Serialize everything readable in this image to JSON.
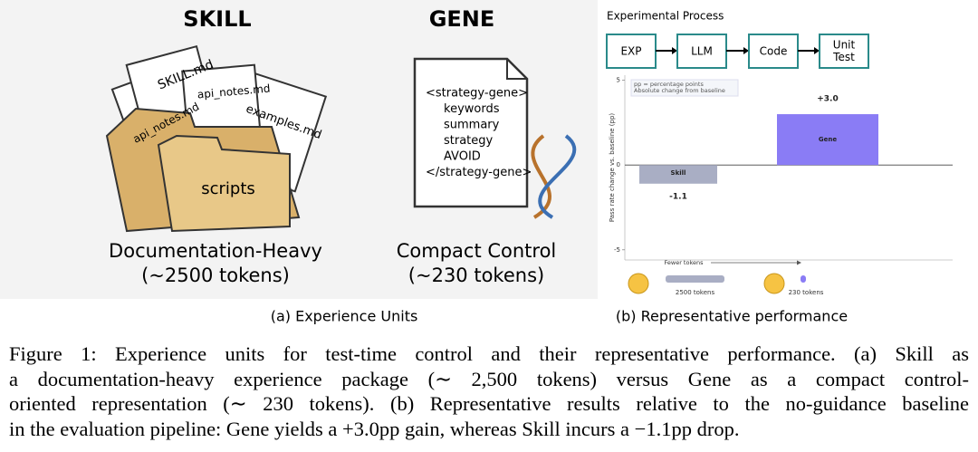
{
  "panel_a": {
    "skill_title": "SKILL",
    "gene_title": "GENE",
    "files": [
      "SKILL.md",
      "api_notes.md",
      "api_notes.md",
      "examples.md",
      "scripts"
    ],
    "gene_lines": [
      "<strategy-gene>",
      "keywords",
      "summary",
      "strategy",
      "AVOID",
      "</strategy-gene>"
    ],
    "skill_label": "Documentation-Heavy",
    "skill_tokens": "(~2500 tokens)",
    "gene_label": "Compact Control",
    "gene_tokens": "(~230 tokens)",
    "caption": "(a) Experience Units"
  },
  "panel_b": {
    "process_title": "Experimental Process",
    "steps": [
      "EXP",
      "LLM",
      "Code",
      "Unit Test"
    ],
    "token_axis": "Fewer tokens",
    "token_bars": [
      {
        "value": 2500,
        "label": "2500 tokens"
      },
      {
        "value": 230,
        "label": "230 tokens"
      }
    ],
    "caption": "(b) Representative performance"
  },
  "chart_data": {
    "type": "bar",
    "ylabel": "Pass rate change vs. baseline (pp)",
    "annotation": [
      "pp = percentage points",
      "Absolute change from baseline"
    ],
    "categories": [
      "Skill",
      "Gene"
    ],
    "values": [
      -1.1,
      3.0
    ],
    "value_labels": [
      "-1.1",
      "+3.0"
    ],
    "colors": [
      "#a9aec4",
      "#8a7cf5"
    ],
    "ylim": [
      -5.6,
      5.3
    ],
    "yticks": [
      -5,
      0,
      5
    ]
  },
  "figure_caption": [
    "Figure 1: Experience units for test-time control and their representative performance. (a) Skill as",
    "a documentation-heavy experience package (∼ 2,500 tokens) versus Gene as a compact control-",
    "oriented representation (∼ 230 tokens). (b) Representative results relative to the no-guidance baseline",
    "in the evaluation pipeline: Gene yields a +3.0pp gain, whereas Skill incurs a −1.1pp drop."
  ]
}
